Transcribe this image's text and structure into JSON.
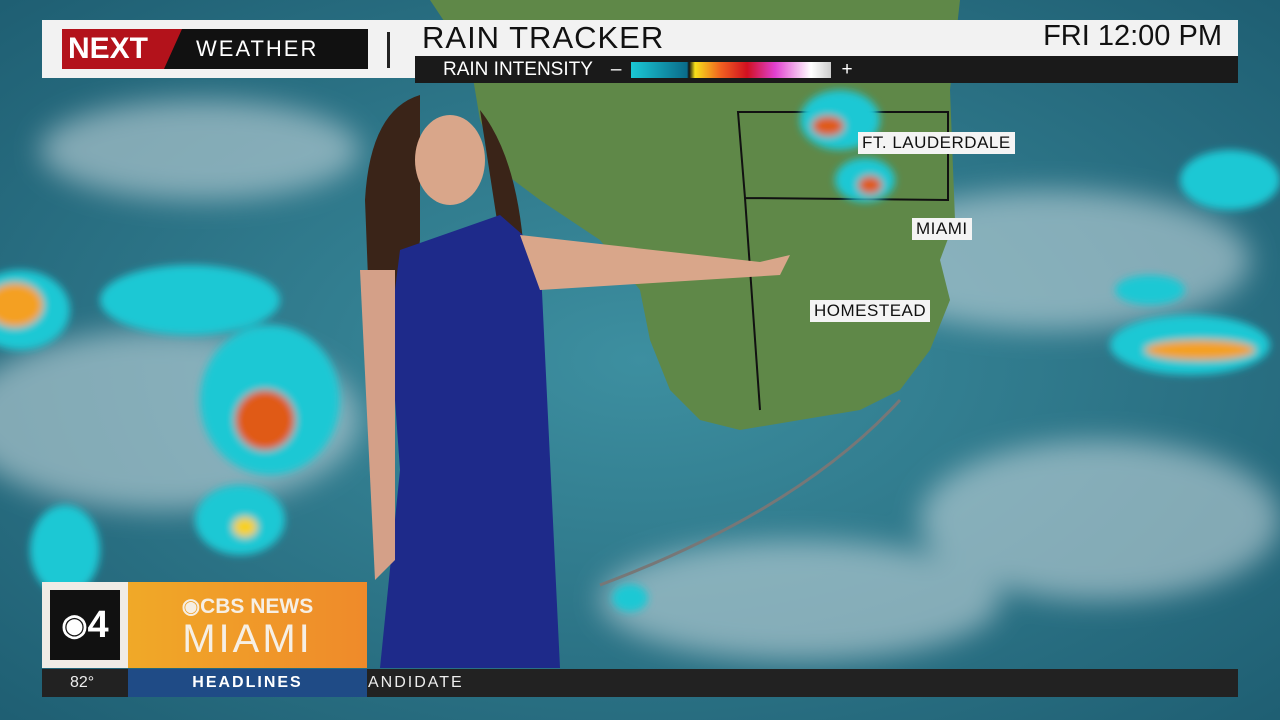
{
  "header": {
    "brand_next": "NEXT",
    "brand_weather": "WEATHER",
    "title": "RAIN TRACKER",
    "time": "FRI 12:00 PM"
  },
  "legend": {
    "label": "RAIN INTENSITY",
    "minus": "–",
    "plus": "+"
  },
  "cities": [
    "FT. LAUDERDALE",
    "MIAMI",
    "HOMESTEAD"
  ],
  "station": {
    "channel": "4",
    "network": "CBS NEWS",
    "city": "MIAMI"
  },
  "ticker": {
    "temperature": "82°",
    "section": "HEADLINES",
    "crawl": "ANDIDATE"
  }
}
